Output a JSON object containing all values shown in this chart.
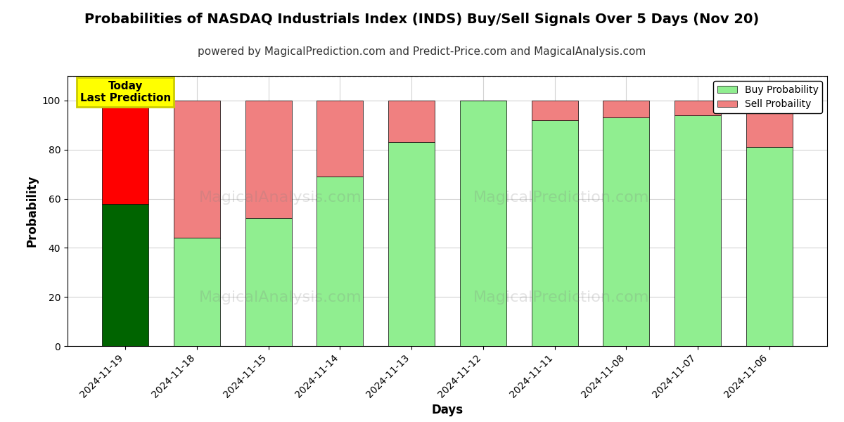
{
  "title": "Probabilities of NASDAQ Industrials Index (INDS) Buy/Sell Signals Over 5 Days (Nov 20)",
  "subtitle": "powered by MagicalPrediction.com and Predict-Price.com and MagicalAnalysis.com",
  "xlabel": "Days",
  "ylabel": "Probability",
  "dates": [
    "2024-11-19",
    "2024-11-18",
    "2024-11-15",
    "2024-11-14",
    "2024-11-13",
    "2024-11-12",
    "2024-11-11",
    "2024-11-08",
    "2024-11-07",
    "2024-11-06"
  ],
  "buy_values": [
    58,
    44,
    52,
    69,
    83,
    100,
    92,
    93,
    94,
    81
  ],
  "sell_values": [
    42,
    56,
    48,
    31,
    17,
    0,
    8,
    7,
    6,
    19
  ],
  "light_green": "#90EE90",
  "light_red": "#F08080",
  "dark_green": "#006400",
  "bright_red": "#FF0000",
  "bar_edge_color": "#000000",
  "ylim": [
    0,
    110
  ],
  "yticks": [
    0,
    20,
    40,
    60,
    80,
    100
  ],
  "dashed_line_y": 110,
  "annotation_text": "Today\nLast Prediction",
  "annotation_bg": "#FFFF00",
  "legend_buy_label": "Buy Probability",
  "legend_sell_label": "Sell Probaility",
  "title_fontsize": 14,
  "subtitle_fontsize": 11,
  "axis_label_fontsize": 12,
  "tick_fontsize": 10,
  "figsize": [
    12.0,
    6.0
  ],
  "dpi": 100
}
